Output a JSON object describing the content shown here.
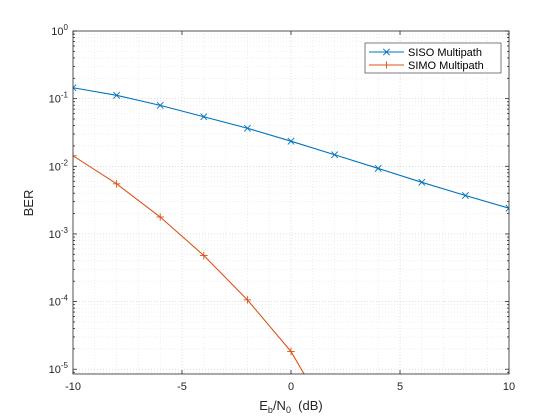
{
  "chart_data": {
    "type": "line",
    "xlabel_parts": [
      "E",
      "b",
      "/N",
      "0",
      "  (dB)"
    ],
    "ylabel": "BER",
    "x_scale": "linear",
    "y_scale": "log",
    "xlim": [
      -10,
      10
    ],
    "ylim": [
      8.5e-06,
      1
    ],
    "x_ticks": [
      -10,
      -5,
      0,
      5,
      10
    ],
    "x_tick_labels": [
      "-10",
      "-5",
      "0",
      "5",
      "10"
    ],
    "y_ticks": [
      1e-05,
      0.0001,
      0.001,
      0.01,
      0.1,
      1
    ],
    "y_tick_labels": [
      {
        "base": "10",
        "exp": "-5"
      },
      {
        "base": "10",
        "exp": "-4"
      },
      {
        "base": "10",
        "exp": "-3"
      },
      {
        "base": "10",
        "exp": "-2"
      },
      {
        "base": "10",
        "exp": "-1"
      },
      {
        "base": "10",
        "exp": "0"
      }
    ],
    "grid": true,
    "minor_grid": true,
    "legend_position": "top-right",
    "series": [
      {
        "name": "SISO Multipath",
        "color": "#0072BD",
        "marker": "x",
        "x": [
          -10,
          -8,
          -6,
          -4,
          -2,
          0,
          2,
          4,
          6,
          8,
          10
        ],
        "y": [
          0.145,
          0.112,
          0.0795,
          0.054,
          0.0365,
          0.0235,
          0.0148,
          0.0093,
          0.0058,
          0.0037,
          0.0024
        ]
      },
      {
        "name": "SIMO Multipath",
        "color": "#D95319",
        "marker": "+",
        "x": [
          -10,
          -8,
          -6,
          -4,
          -2,
          0,
          0.6
        ],
        "y": [
          0.0143,
          0.0055,
          0.00178,
          0.00048,
          0.000106,
          1.83e-05,
          8.5e-06
        ]
      }
    ]
  }
}
